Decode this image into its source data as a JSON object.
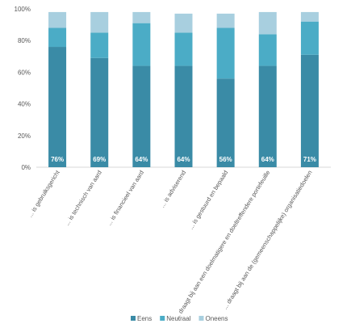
{
  "chart_data": {
    "type": "bar",
    "stacked": true,
    "categories": [
      "... is gebruiksgericht",
      "... is technisch van aard",
      "... is financieel van aard",
      "... is adviserend",
      "... is gestuurd en bepaald",
      "... draagt bij aan een doelmatigere en doeltreffendere portefeuille",
      "... draagt bij aan de (gemeenschappelijke) organisatiedoelen"
    ],
    "series": [
      {
        "name": "Eens",
        "values": [
          76,
          69,
          64,
          64,
          56,
          64,
          71
        ],
        "labels": [
          "76%",
          "69%",
          "64%",
          "64%",
          "56%",
          "64%",
          "71%"
        ]
      },
      {
        "name": "Neutraal",
        "values": [
          12,
          16,
          27,
          21,
          32,
          20,
          21
        ]
      },
      {
        "name": "Oneens",
        "values": [
          10,
          13,
          7,
          12,
          9,
          14,
          6
        ]
      }
    ],
    "y_ticks": [
      "0%",
      "20%",
      "40%",
      "60%",
      "80%",
      "100%"
    ],
    "ylim": [
      0,
      100
    ],
    "grid": false,
    "legend_position": "bottom",
    "colors": {
      "Eens": "#3a8ba6",
      "Neutraal": "#4bacc6",
      "Oneens": "#a8cfdf"
    }
  }
}
